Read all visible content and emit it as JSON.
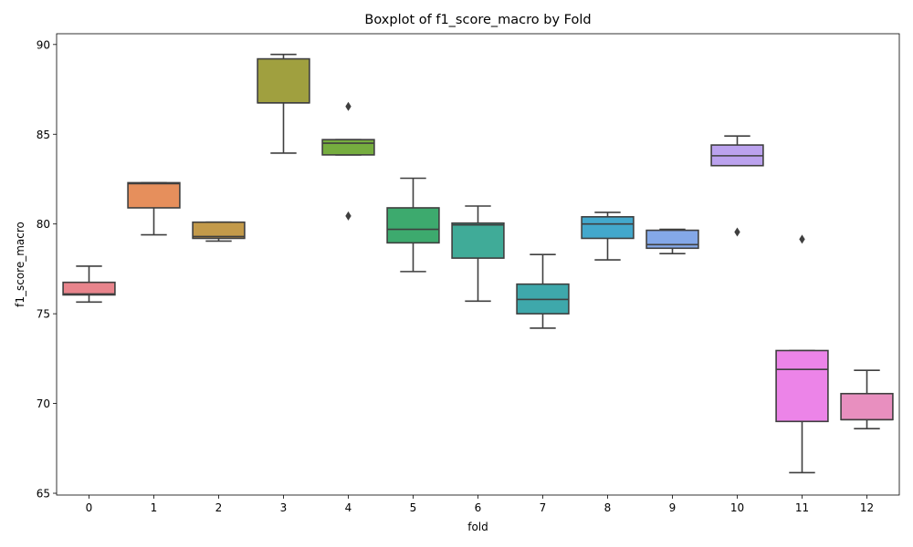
{
  "chart_data": {
    "type": "box",
    "title": "Boxplot of f1_score_macro by Fold",
    "xlabel": "fold",
    "ylabel": "f1_score_macro",
    "ylim": [
      64.9,
      90.6
    ],
    "yticks": [
      65,
      70,
      75,
      80,
      85,
      90
    ],
    "grid": false,
    "categories": [
      "0",
      "1",
      "2",
      "3",
      "4",
      "5",
      "6",
      "7",
      "8",
      "9",
      "10",
      "11",
      "12"
    ],
    "boxes": [
      {
        "fold": "0",
        "color": "#e8848c",
        "whisker_low": 75.65,
        "q1": 76.05,
        "median": 76.1,
        "q3": 76.75,
        "whisker_high": 77.65,
        "outliers": []
      },
      {
        "fold": "1",
        "color": "#e68f5c",
        "whisker_low": 79.4,
        "q1": 80.9,
        "median": 82.25,
        "q3": 82.3,
        "whisker_high": 82.3,
        "outliers": []
      },
      {
        "fold": "2",
        "color": "#c39a4a",
        "whisker_low": 79.05,
        "q1": 79.2,
        "median": 79.3,
        "q3": 80.1,
        "whisker_high": 80.1,
        "outliers": []
      },
      {
        "fold": "3",
        "color": "#a0a03f",
        "whisker_low": 83.95,
        "q1": 86.75,
        "median": 86.75,
        "q3": 89.2,
        "whisker_high": 89.45,
        "outliers": []
      },
      {
        "fold": "4",
        "color": "#76ad3f",
        "whisker_low": 83.85,
        "q1": 83.85,
        "median": 84.5,
        "q3": 84.7,
        "whisker_high": 84.7,
        "outliers": [
          86.55,
          80.45
        ]
      },
      {
        "fold": "5",
        "color": "#3daa6e",
        "whisker_low": 77.35,
        "q1": 78.95,
        "median": 79.7,
        "q3": 80.9,
        "whisker_high": 82.55,
        "outliers": []
      },
      {
        "fold": "6",
        "color": "#40ab98",
        "whisker_low": 75.7,
        "q1": 78.1,
        "median": 79.95,
        "q3": 80.05,
        "whisker_high": 81.0,
        "outliers": []
      },
      {
        "fold": "7",
        "color": "#3ea8ab",
        "whisker_low": 74.2,
        "q1": 75.0,
        "median": 75.8,
        "q3": 76.65,
        "whisker_high": 78.3,
        "outliers": []
      },
      {
        "fold": "8",
        "color": "#43a8cc",
        "whisker_low": 78.0,
        "q1": 79.2,
        "median": 80.0,
        "q3": 80.4,
        "whisker_high": 80.65,
        "outliers": []
      },
      {
        "fold": "9",
        "color": "#84a8e8",
        "whisker_low": 78.35,
        "q1": 78.65,
        "median": 78.85,
        "q3": 79.65,
        "whisker_high": 79.7,
        "outliers": []
      },
      {
        "fold": "10",
        "color": "#bba2ee",
        "whisker_low": 83.25,
        "q1": 83.25,
        "median": 83.8,
        "q3": 84.4,
        "whisker_high": 84.9,
        "outliers": [
          79.55
        ]
      },
      {
        "fold": "11",
        "color": "#ec84e8",
        "whisker_low": 66.15,
        "q1": 69.0,
        "median": 71.9,
        "q3": 72.95,
        "whisker_high": 72.95,
        "outliers": [
          79.15
        ]
      },
      {
        "fold": "12",
        "color": "#e88fbf",
        "whisker_low": 68.6,
        "q1": 69.1,
        "median": 69.1,
        "q3": 70.55,
        "whisker_high": 71.85,
        "outliers": []
      }
    ]
  }
}
